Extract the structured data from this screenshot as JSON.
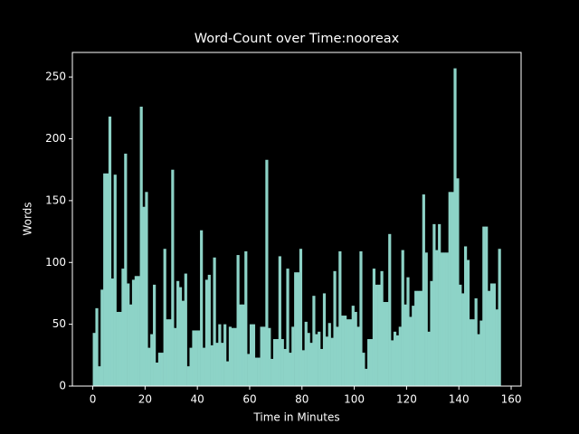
{
  "chart_data": {
    "type": "bar",
    "title": "Word-Count over Time:nooreax",
    "xlabel": "Time in Minutes",
    "ylabel": "Words",
    "color": "#8dd3c7",
    "x": [
      0,
      1,
      2,
      3,
      4,
      5,
      6,
      7,
      8,
      9,
      10,
      11,
      12,
      13,
      14,
      15,
      16,
      17,
      18,
      19,
      20,
      21,
      22,
      23,
      24,
      25,
      26,
      27,
      28,
      29,
      30,
      31,
      32,
      33,
      34,
      35,
      36,
      37,
      38,
      39,
      40,
      41,
      42,
      43,
      44,
      45,
      46,
      47,
      48,
      49,
      50,
      51,
      52,
      53,
      54,
      55,
      56,
      57,
      58,
      59,
      60,
      61,
      62,
      63,
      64,
      65,
      66,
      67,
      68,
      69,
      70,
      71,
      72,
      73,
      74,
      75,
      76,
      77,
      78,
      79,
      80,
      81,
      82,
      83,
      84,
      85,
      86,
      87,
      88,
      89,
      90,
      91,
      92,
      93,
      94,
      95,
      96,
      97,
      98,
      99,
      100,
      101,
      102,
      103,
      104,
      105,
      106,
      107,
      108,
      109,
      110,
      111,
      112,
      113,
      114,
      115,
      116,
      117,
      118,
      119,
      120,
      121,
      122,
      123,
      124,
      125,
      126,
      127,
      128,
      129,
      130,
      131,
      132,
      133,
      134,
      135,
      136,
      137,
      138,
      139,
      140,
      141,
      142,
      143,
      144,
      145,
      146,
      147,
      148,
      149,
      150,
      151,
      152,
      153,
      154,
      155
    ],
    "values": [
      43,
      63,
      16,
      78,
      172,
      172,
      218,
      87,
      171,
      60,
      60,
      95,
      188,
      83,
      66,
      86,
      89,
      89,
      226,
      145,
      157,
      31,
      42,
      82,
      19,
      27,
      27,
      111,
      54,
      54,
      175,
      47,
      85,
      80,
      69,
      91,
      16,
      31,
      45,
      45,
      45,
      126,
      31,
      86,
      90,
      33,
      104,
      35,
      50,
      35,
      50,
      20,
      48,
      47,
      47,
      106,
      66,
      66,
      109,
      26,
      50,
      50,
      23,
      23,
      48,
      48,
      183,
      47,
      22,
      38,
      38,
      105,
      38,
      30,
      95,
      27,
      48,
      92,
      92,
      111,
      29,
      52,
      43,
      35,
      73,
      42,
      44,
      30,
      75,
      40,
      51,
      39,
      93,
      48,
      109,
      57,
      57,
      54,
      54,
      65,
      60,
      48,
      109,
      27,
      14,
      38,
      38,
      95,
      82,
      82,
      93,
      68,
      68,
      123,
      37,
      44,
      41,
      48,
      110,
      66,
      88,
      56,
      65,
      77,
      77,
      77,
      155,
      108,
      44,
      85,
      131,
      110,
      131,
      108,
      108,
      108,
      157,
      157,
      257,
      168,
      82,
      75,
      113,
      102,
      54,
      54,
      71,
      42,
      53,
      129,
      129,
      77,
      83,
      83,
      62,
      111
    ],
    "xlim": [
      -7.8,
      163.8
    ],
    "xticks": [
      0,
      20,
      40,
      60,
      80,
      100,
      120,
      140,
      160
    ],
    "ylim": [
      0,
      269.85
    ],
    "yticks": [
      0,
      50,
      100,
      150,
      200,
      250
    ]
  }
}
